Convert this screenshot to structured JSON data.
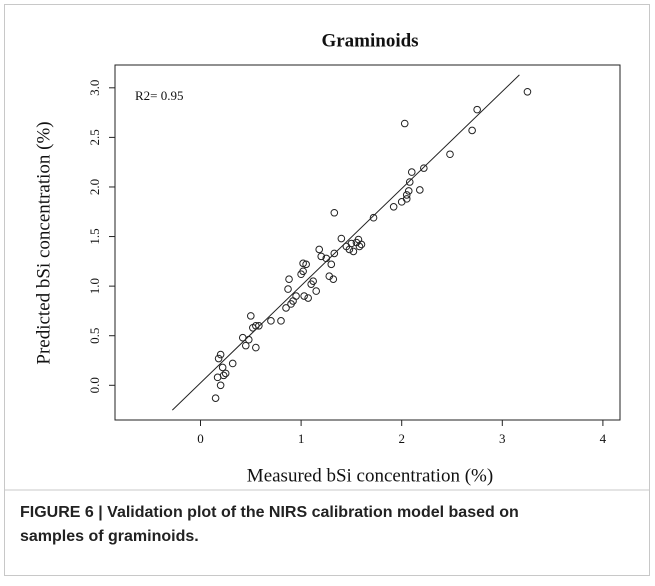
{
  "chart_data": {
    "type": "scatter",
    "title": "Graminoids",
    "x_label": "Measured bSi concentration (%)",
    "y_label": "Predicted bSi concentration (%)",
    "annotation": "R2= 0.95",
    "caption": [
      "FIGURE 6 | Validation plot of the NIRS calibration model based on",
      "samples of graminoids."
    ],
    "xlim": [
      -0.85,
      4.17
    ],
    "ylim": [
      -0.35,
      3.23
    ],
    "xticks": [
      0,
      1,
      2,
      3,
      4
    ],
    "yticks": [
      {
        "value": 0,
        "label": "0.0"
      },
      {
        "value": 0.5,
        "label": "0.5"
      },
      {
        "value": 1,
        "label": "1.0"
      },
      {
        "value": 1.5,
        "label": "1.5"
      },
      {
        "value": 2,
        "label": "2.0"
      },
      {
        "value": 2.5,
        "label": "2.5"
      },
      {
        "value": 3,
        "label": "3.0"
      }
    ],
    "grid": false,
    "color": "#222222",
    "fit_line": {
      "x": [
        -0.28,
        3.17
      ],
      "y": [
        -0.25,
        3.13
      ]
    },
    "x": [
      0.15,
      0.17,
      0.18,
      0.2,
      0.2,
      0.22,
      0.23,
      0.25,
      0.32,
      0.42,
      0.45,
      0.48,
      0.5,
      0.52,
      0.55,
      0.55,
      0.58,
      0.7,
      0.8,
      0.85,
      0.87,
      0.88,
      0.9,
      0.92,
      0.95,
      1.0,
      1.02,
      1.02,
      1.05,
      1.03,
      1.07,
      1.1,
      1.12,
      1.15,
      1.18,
      1.2,
      1.25,
      1.28,
      1.3,
      1.32,
      1.33,
      1.33,
      1.4,
      1.45,
      1.48,
      1.5,
      1.52,
      1.55,
      1.57,
      1.58,
      1.6,
      1.72,
      1.92,
      2.0,
      2.03,
      2.05,
      2.05,
      2.07,
      2.08,
      2.1,
      2.18,
      2.22,
      2.48,
      2.7,
      2.75,
      3.25
    ],
    "values": [
      -0.13,
      0.08,
      0.27,
      0.31,
      0.0,
      0.18,
      0.1,
      0.12,
      0.22,
      0.48,
      0.4,
      0.46,
      0.7,
      0.58,
      0.38,
      0.6,
      0.6,
      0.65,
      0.65,
      0.78,
      0.97,
      1.07,
      0.82,
      0.85,
      0.9,
      1.12,
      1.15,
      1.23,
      1.22,
      0.9,
      0.88,
      1.02,
      1.05,
      0.95,
      1.37,
      1.3,
      1.28,
      1.1,
      1.22,
      1.07,
      1.33,
      1.74,
      1.48,
      1.4,
      1.37,
      1.43,
      1.35,
      1.44,
      1.47,
      1.4,
      1.42,
      1.69,
      1.8,
      1.85,
      2.64,
      1.92,
      1.88,
      1.96,
      2.05,
      2.15,
      1.97,
      2.19,
      2.33,
      2.57,
      2.78,
      2.96
    ]
  }
}
